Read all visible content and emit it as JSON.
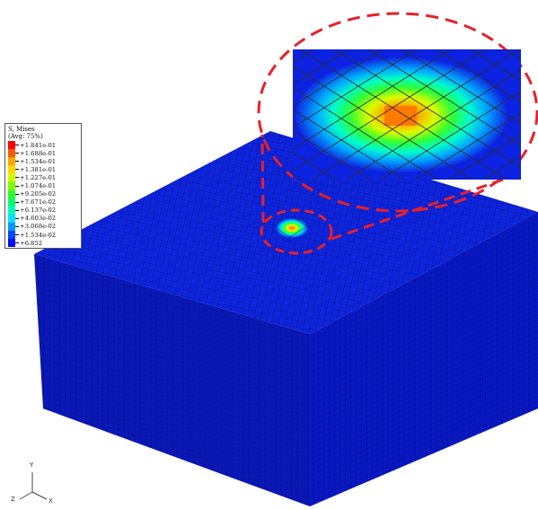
{
  "legend": {
    "title": "S, Mises",
    "subtitle": "(Avg: 75%)",
    "entries": [
      {
        "label": "+1.841e-01",
        "color": "#ff0000"
      },
      {
        "label": "+1.688e-01",
        "color": "#ff5a00"
      },
      {
        "label": "+1.534e-01",
        "color": "#ffa500"
      },
      {
        "label": "+1.381e-01",
        "color": "#ffd700"
      },
      {
        "label": "+1.227e-01",
        "color": "#d4ff00"
      },
      {
        "label": "+1.074e-01",
        "color": "#7aff00"
      },
      {
        "label": "+9.205e-02",
        "color": "#2cff2c"
      },
      {
        "label": "+7.671e-02",
        "color": "#00ff6e"
      },
      {
        "label": "+6.137e-02",
        "color": "#00ffc0"
      },
      {
        "label": "+4.603e-02",
        "color": "#00e1ff"
      },
      {
        "label": "+3.068e-02",
        "color": "#0096ff"
      },
      {
        "label": "+1.534e-02",
        "color": "#0046ff"
      },
      {
        "label": "+6.852"
      }
    ],
    "last_color": "#0a0aff"
  },
  "model": {
    "body_color": "#0a1fd8",
    "side_dark_color": "#0a14a8",
    "highlight_ring_color": "#e8202a"
  },
  "axes": {
    "y": "Y",
    "z": "Z",
    "x": "X"
  }
}
